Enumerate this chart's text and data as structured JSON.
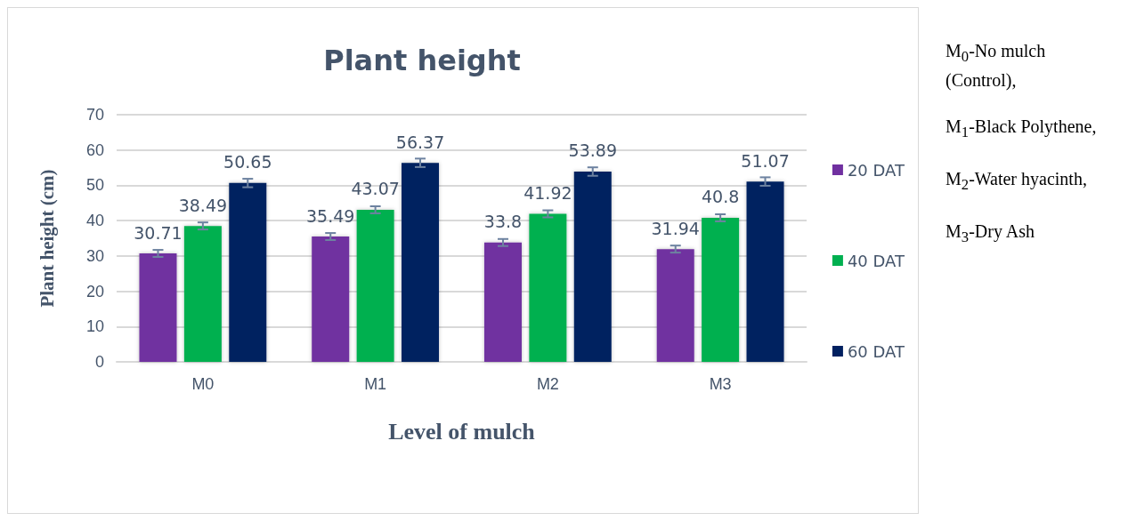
{
  "chart_data": {
    "type": "bar",
    "title": "Plant height",
    "xlabel": "Level of mulch",
    "ylabel": "Plant height (cm)",
    "categories": [
      "M0",
      "M1",
      "M2",
      "M3"
    ],
    "series": [
      {
        "name": "20 DAT",
        "color": "#7030a0",
        "values": [
          30.71,
          35.49,
          33.8,
          31.94
        ],
        "errors": [
          1,
          1,
          1,
          1
        ]
      },
      {
        "name": "40 DAT",
        "color": "#00b050",
        "values": [
          38.49,
          43.07,
          41.92,
          40.8
        ],
        "errors": [
          1,
          1,
          1,
          1
        ]
      },
      {
        "name": "60 DAT",
        "color": "#002060",
        "values": [
          50.65,
          56.37,
          53.89,
          51.07
        ],
        "errors": [
          1.2,
          1.2,
          1.2,
          1.2
        ]
      }
    ],
    "ylim": [
      0,
      70
    ],
    "yticks": [
      0,
      10,
      20,
      30,
      40,
      50,
      60,
      70
    ],
    "grid": "y",
    "legend": "right",
    "data_labels": true,
    "annotations": [
      "M$_{0}$-No mulch (Control),",
      "M$_{1}$-Black Polythene,",
      "M$_{2}$-Water hyacinth,",
      "M$_{3}$-Dry Ash"
    ]
  }
}
